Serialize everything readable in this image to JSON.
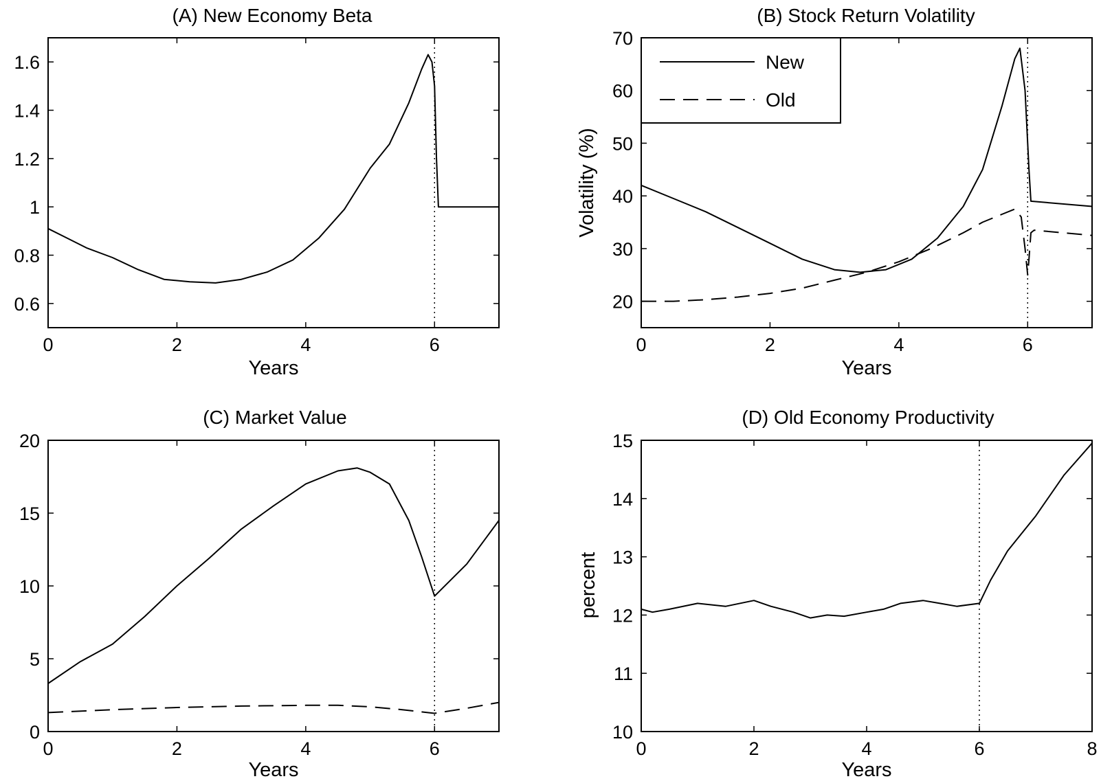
{
  "chart_data": [
    {
      "type": "line",
      "title": "(A) New Economy Beta",
      "xlabel": "Years",
      "ylabel": "",
      "xlim": [
        0,
        7
      ],
      "ylim": [
        0.5,
        1.7
      ],
      "xticks": [
        0,
        2,
        4,
        6
      ],
      "yticks": [
        0.6,
        0.8,
        1,
        1.2,
        1.4,
        1.6
      ],
      "xtick_labels": [
        "0",
        "2",
        "4",
        "6"
      ],
      "ytick_labels": [
        "0.6",
        "0.8",
        "1",
        "1.2",
        "1.4",
        "1.6"
      ],
      "vline": 6,
      "grid": false,
      "series": [
        {
          "style": "solid",
          "x": [
            0,
            0.3,
            0.6,
            1.0,
            1.4,
            1.8,
            2.2,
            2.6,
            3.0,
            3.4,
            3.8,
            4.2,
            4.6,
            5.0,
            5.3,
            5.6,
            5.8,
            5.9,
            5.96,
            6.0,
            6.03,
            6.06,
            7.0
          ],
          "y": [
            0.91,
            0.87,
            0.83,
            0.79,
            0.74,
            0.7,
            0.69,
            0.685,
            0.7,
            0.73,
            0.78,
            0.87,
            0.99,
            1.16,
            1.26,
            1.43,
            1.57,
            1.63,
            1.6,
            1.5,
            1.2,
            1.0,
            1.0
          ]
        }
      ]
    },
    {
      "type": "line",
      "title": "(B) Stock Return Volatility",
      "xlabel": "Years",
      "ylabel": "Volatility (%)",
      "xlim": [
        0,
        7
      ],
      "ylim": [
        15,
        70
      ],
      "xticks": [
        0,
        2,
        4,
        6
      ],
      "yticks": [
        20,
        30,
        40,
        50,
        60,
        70
      ],
      "xtick_labels": [
        "0",
        "2",
        "4",
        "6"
      ],
      "ytick_labels": [
        "20",
        "30",
        "40",
        "50",
        "60",
        "70"
      ],
      "vline": 6,
      "grid": false,
      "legend": "top-left",
      "series": [
        {
          "name": "New",
          "style": "solid",
          "x": [
            0,
            0.5,
            1.0,
            1.5,
            2.0,
            2.5,
            3.0,
            3.4,
            3.8,
            4.2,
            4.6,
            5.0,
            5.3,
            5.6,
            5.8,
            5.88,
            5.96,
            6.02,
            6.05,
            7.0
          ],
          "y": [
            42,
            39.5,
            37,
            34,
            31,
            28,
            26,
            25.5,
            26,
            28,
            32,
            38,
            45,
            57,
            66,
            68,
            60,
            45,
            39,
            38
          ]
        },
        {
          "name": "Old",
          "style": "dashed",
          "x": [
            0,
            0.5,
            1.0,
            1.5,
            2.0,
            2.5,
            3.0,
            3.5,
            4.0,
            4.5,
            5.0,
            5.3,
            5.6,
            5.8,
            5.9,
            5.96,
            6.0,
            6.02,
            6.05,
            6.1,
            7.0
          ],
          "y": [
            20,
            20,
            20.3,
            20.8,
            21.5,
            22.5,
            24,
            25.5,
            27.5,
            30,
            33,
            35,
            36.5,
            37.5,
            36,
            30,
            25,
            28,
            33,
            33.5,
            32.5
          ]
        }
      ]
    },
    {
      "type": "line",
      "title": "(C) Market Value",
      "xlabel": "Years",
      "ylabel": "",
      "xlim": [
        0,
        7
      ],
      "ylim": [
        0,
        20
      ],
      "xticks": [
        0,
        2,
        4,
        6
      ],
      "yticks": [
        0,
        5,
        10,
        15,
        20
      ],
      "xtick_labels": [
        "0",
        "2",
        "4",
        "6"
      ],
      "ytick_labels": [
        "0",
        "5",
        "10",
        "15",
        "20"
      ],
      "vline": 6,
      "grid": false,
      "series": [
        {
          "style": "solid",
          "x": [
            0,
            0.5,
            1.0,
            1.5,
            2.0,
            2.5,
            3.0,
            3.5,
            4.0,
            4.5,
            4.8,
            5.0,
            5.3,
            5.6,
            5.8,
            6.0,
            6.5,
            7.0
          ],
          "y": [
            3.3,
            4.8,
            6.0,
            7.9,
            10.0,
            11.9,
            13.9,
            15.5,
            17.0,
            17.9,
            18.1,
            17.8,
            17.0,
            14.5,
            12.0,
            9.3,
            11.5,
            14.5
          ]
        },
        {
          "style": "dashed",
          "x": [
            0,
            1,
            2,
            3,
            4,
            4.5,
            5.0,
            5.5,
            6.0,
            6.5,
            7.0
          ],
          "y": [
            1.3,
            1.5,
            1.65,
            1.75,
            1.8,
            1.8,
            1.7,
            1.5,
            1.25,
            1.6,
            2.0
          ]
        }
      ]
    },
    {
      "type": "line",
      "title": "(D) Old Economy Productivity",
      "xlabel": "Years",
      "ylabel": "percent",
      "xlim": [
        0,
        8
      ],
      "ylim": [
        10,
        15
      ],
      "xticks": [
        0,
        2,
        4,
        6,
        8
      ],
      "yticks": [
        10,
        11,
        12,
        13,
        14,
        15
      ],
      "xtick_labels": [
        "0",
        "2",
        "4",
        "6",
        "8"
      ],
      "ytick_labels": [
        "10",
        "11",
        "12",
        "13",
        "14",
        "15"
      ],
      "vline": 6,
      "grid": false,
      "series": [
        {
          "style": "solid",
          "x": [
            0,
            0.2,
            0.5,
            1.0,
            1.5,
            2.0,
            2.3,
            2.7,
            3.0,
            3.3,
            3.6,
            4.0,
            4.3,
            4.6,
            5.0,
            5.3,
            5.6,
            6.0,
            6.2,
            6.5,
            7.0,
            7.5,
            8.0
          ],
          "y": [
            12.1,
            12.05,
            12.1,
            12.2,
            12.15,
            12.25,
            12.15,
            12.05,
            11.95,
            12.0,
            11.98,
            12.05,
            12.1,
            12.2,
            12.25,
            12.2,
            12.15,
            12.2,
            12.6,
            13.1,
            13.7,
            14.4,
            14.95
          ]
        }
      ]
    }
  ]
}
